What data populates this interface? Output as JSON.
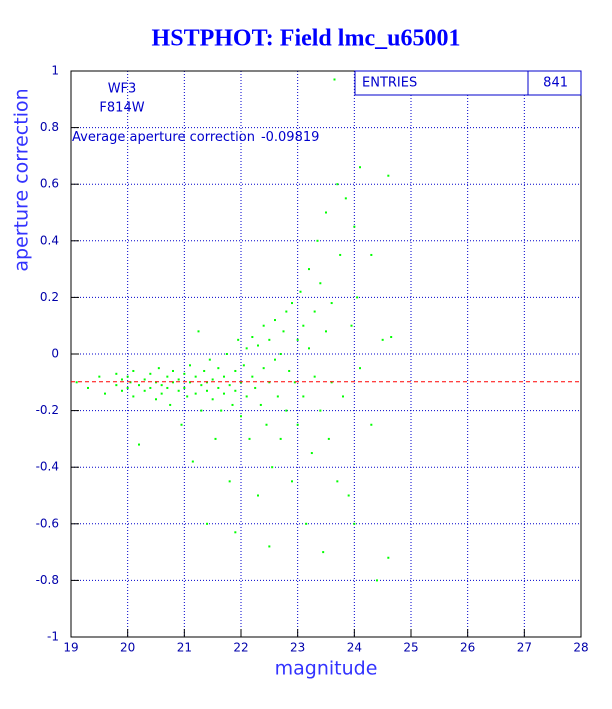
{
  "chart_data": {
    "type": "scatter",
    "title": "HSTPHOT: Field lmc_u65001",
    "x_label": "magnitude",
    "y_label": "aperture correction",
    "labels": [
      "WF3",
      "F814W"
    ],
    "mean_label": "Average aperture correction",
    "mean": -0.09819,
    "mean_color": "#ff0000",
    "stats": {
      "name": "ENTRIES",
      "value": 841
    },
    "series": [
      {
        "color": "#00ff00",
        "x": [
          19.1,
          19.3,
          19.5,
          19.6,
          19.8,
          19.8,
          19.9,
          19.9,
          20.0,
          20.0,
          20.05,
          20.1,
          20.1,
          20.2,
          20.2,
          20.3,
          20.3,
          20.4,
          20.4,
          20.5,
          20.5,
          20.55,
          20.6,
          20.6,
          20.7,
          20.7,
          20.75,
          20.8,
          20.8,
          20.9,
          20.9,
          20.95,
          21.0,
          21.0,
          21.05,
          21.1,
          21.1,
          21.15,
          21.2,
          21.2,
          21.25,
          21.3,
          21.3,
          21.35,
          21.4,
          21.4,
          21.45,
          21.5,
          21.5,
          21.55,
          21.6,
          21.6,
          21.65,
          21.7,
          21.7,
          21.75,
          21.8,
          21.8,
          21.85,
          21.9,
          21.9,
          21.95,
          22.0,
          22.0,
          22.05,
          22.1,
          22.1,
          22.15,
          22.2,
          22.2,
          22.25,
          22.3,
          22.3,
          22.35,
          22.4,
          22.4,
          22.45,
          22.5,
          22.5,
          22.55,
          22.6,
          22.6,
          22.65,
          22.7,
          22.7,
          22.75,
          22.8,
          22.8,
          22.85,
          22.9,
          22.9,
          22.95,
          23.0,
          23.0,
          23.05,
          23.1,
          23.1,
          23.15,
          23.2,
          23.2,
          23.25,
          23.3,
          23.3,
          23.35,
          23.4,
          23.4,
          23.45,
          23.5,
          23.5,
          23.55,
          23.6,
          23.6,
          23.65,
          23.7,
          23.7,
          23.75,
          23.8,
          23.85,
          23.9,
          23.95,
          24.0,
          24.0,
          24.05,
          24.1,
          24.1,
          24.3,
          24.3,
          24.4,
          24.5,
          24.6,
          24.6,
          24.65,
          21.4,
          21.9,
          22.5
        ],
        "y": [
          -0.1,
          -0.12,
          -0.08,
          -0.14,
          -0.07,
          -0.11,
          -0.09,
          -0.13,
          -0.08,
          -0.12,
          -0.1,
          -0.15,
          -0.06,
          -0.11,
          -0.32,
          -0.09,
          -0.13,
          -0.07,
          -0.12,
          -0.1,
          -0.16,
          -0.05,
          -0.11,
          -0.14,
          -0.08,
          -0.12,
          -0.18,
          -0.06,
          -0.1,
          -0.13,
          -0.09,
          -0.25,
          -0.07,
          -0.12,
          -0.15,
          -0.04,
          -0.1,
          -0.38,
          -0.08,
          -0.14,
          0.08,
          -0.11,
          -0.2,
          -0.06,
          -0.13,
          -0.1,
          -0.02,
          -0.16,
          -0.09,
          -0.3,
          -0.12,
          -0.05,
          -0.2,
          -0.08,
          -0.14,
          0.0,
          -0.11,
          -0.45,
          -0.18,
          -0.06,
          -0.13,
          0.05,
          -0.1,
          -0.22,
          -0.04,
          -0.15,
          0.02,
          -0.3,
          -0.08,
          0.06,
          -0.12,
          -0.5,
          0.03,
          -0.18,
          -0.05,
          0.1,
          -0.25,
          -0.1,
          0.05,
          -0.4,
          -0.02,
          0.12,
          -0.15,
          0.0,
          -0.3,
          0.08,
          -0.2,
          0.15,
          -0.06,
          0.18,
          -0.45,
          -0.1,
          0.05,
          -0.25,
          0.22,
          -0.15,
          0.1,
          -0.6,
          0.02,
          0.3,
          -0.35,
          0.15,
          -0.08,
          0.4,
          -0.2,
          0.25,
          -0.7,
          0.08,
          0.5,
          -0.3,
          0.18,
          -0.1,
          0.97,
          0.6,
          -0.45,
          0.35,
          -0.15,
          0.55,
          -0.5,
          0.1,
          -0.6,
          0.45,
          0.2,
          0.66,
          -0.05,
          0.35,
          -0.25,
          -0.8,
          0.05,
          0.63,
          -0.72,
          0.06,
          -0.6,
          -0.63,
          -0.68
        ]
      }
    ],
    "xlim": [
      19,
      28
    ],
    "ylim": [
      -1,
      1
    ],
    "xticks": [
      19,
      20,
      21,
      22,
      23,
      24,
      25,
      26,
      27,
      28
    ],
    "yticks": [
      -1,
      -0.8,
      -0.6,
      -0.4,
      -0.2,
      0,
      0.2,
      0.4,
      0.6,
      0.8,
      1
    ],
    "grid": true
  }
}
